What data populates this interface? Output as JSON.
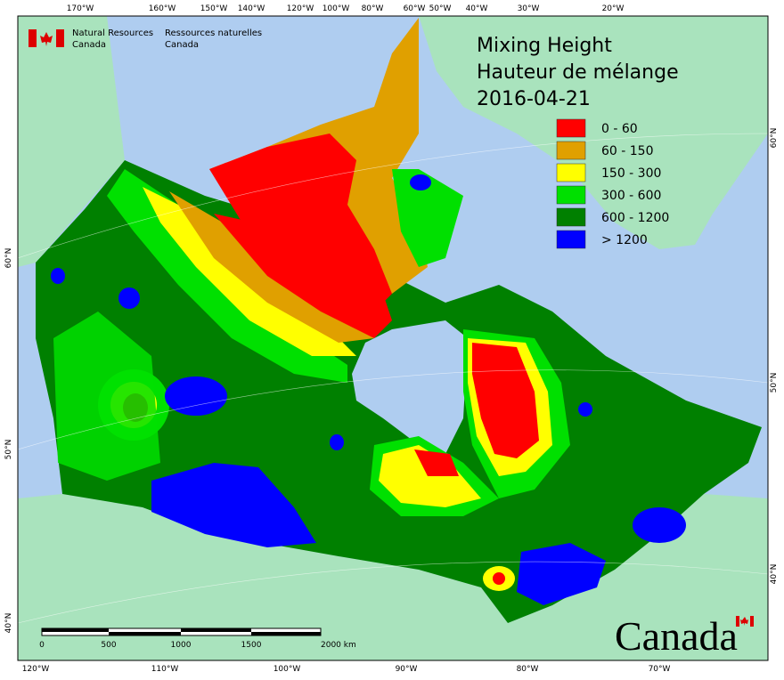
{
  "header": {
    "agency_en": [
      "Natural Resources",
      "Canada"
    ],
    "agency_fr": [
      "Ressources naturelles",
      "Canada"
    ]
  },
  "title": [
    "Mixing Height",
    "Hauteur de mélange",
    "2016-04-21"
  ],
  "legend": [
    {
      "label": "0 - 60",
      "color": "#ff0000"
    },
    {
      "label": "60 - 150",
      "color": "#e0a000"
    },
    {
      "label": "150 - 300",
      "color": "#ffff00"
    },
    {
      "label": "300 - 600",
      "color": "#00e000"
    },
    {
      "label": "600 - 1200",
      "color": "#008000"
    },
    {
      "label": "> 1200",
      "color": "#0000ff"
    }
  ],
  "graticule": {
    "top": [
      "170°W",
      "160°W",
      "150°W",
      "140°W",
      "120°W",
      "100°W",
      "80°W",
      "60°W",
      "50°W",
      "40°W",
      "30°W",
      "20°W"
    ],
    "bottom": [
      "120°W",
      "110°W",
      "100°W",
      "90°W",
      "80°W",
      "70°W"
    ],
    "left": [
      "60°N",
      "50°N",
      "40°N"
    ],
    "right": [
      "60°N",
      "50°N",
      "40°N"
    ]
  },
  "scale_bar": [
    "0",
    "500",
    "1000",
    "1500",
    "2000 km"
  ],
  "wordmark": "Canada"
}
